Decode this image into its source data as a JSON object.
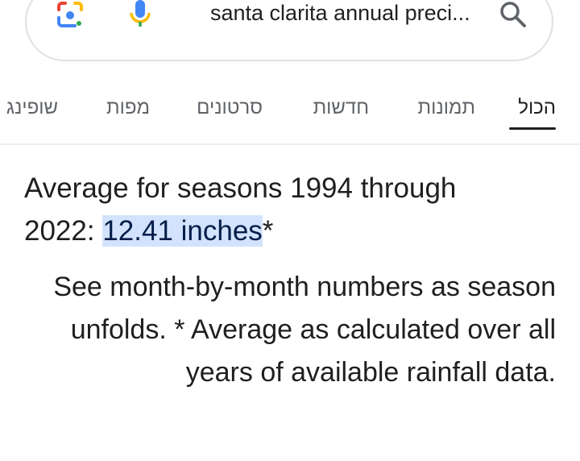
{
  "search": {
    "query": "santa clarita annual preci..."
  },
  "tabs": [
    "הכול",
    "תמונות",
    "חדשות",
    "סרטונים",
    "מפות",
    "שופינג"
  ],
  "answer": {
    "prefix": "Average for seasons 1994 through 2022: ",
    "highlight": "12.41 inches",
    "suffix": "*"
  },
  "detail": "See month-by-month numbers as season unfolds. * Average as calculated over all years of available rainfall data."
}
